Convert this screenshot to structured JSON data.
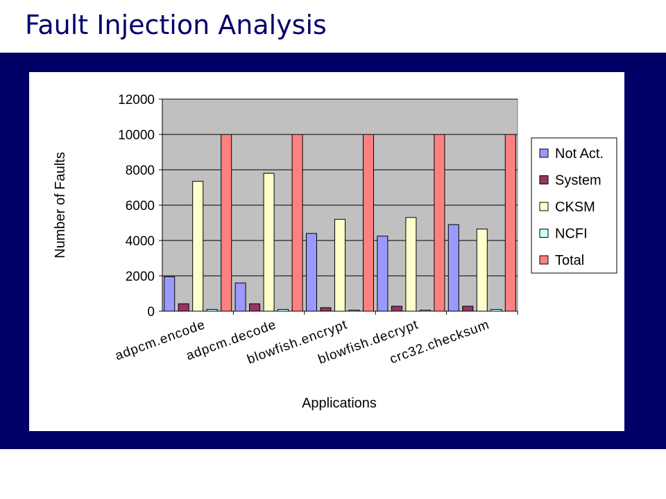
{
  "slide": {
    "title": "Fault Injection Analysis"
  },
  "colors": {
    "navy": "#000066",
    "plot_bg": "#c0c0c0"
  },
  "chart_data": {
    "type": "bar",
    "title": "",
    "xlabel": "Applications",
    "ylabel": "Number of Faults",
    "ylim": [
      0,
      12000
    ],
    "yticks": [
      "12000",
      "10000",
      "8000",
      "6000",
      "4000",
      "2000",
      "0"
    ],
    "grid": true,
    "legend_position": "right",
    "categories": [
      "adpcm.encode",
      "adpcm.decode",
      "blowfish.encrypt",
      "blowfish.decrypt",
      "crc32.checksum"
    ],
    "series": [
      {
        "name": "Not Act.",
        "color": "#9999ff",
        "values": [
          1950,
          1600,
          4400,
          4250,
          4900
        ]
      },
      {
        "name": "System",
        "color": "#993366",
        "values": [
          420,
          420,
          200,
          280,
          280
        ]
      },
      {
        "name": "CKSM",
        "color": "#ffffcc",
        "values": [
          7350,
          7800,
          5200,
          5300,
          4650
        ]
      },
      {
        "name": "NCFI",
        "color": "#ccffff",
        "values": [
          100,
          100,
          60,
          60,
          100
        ]
      },
      {
        "name": "Total",
        "color": "#ff8080",
        "values": [
          10000,
          10000,
          10000,
          10000,
          10000
        ]
      }
    ]
  }
}
